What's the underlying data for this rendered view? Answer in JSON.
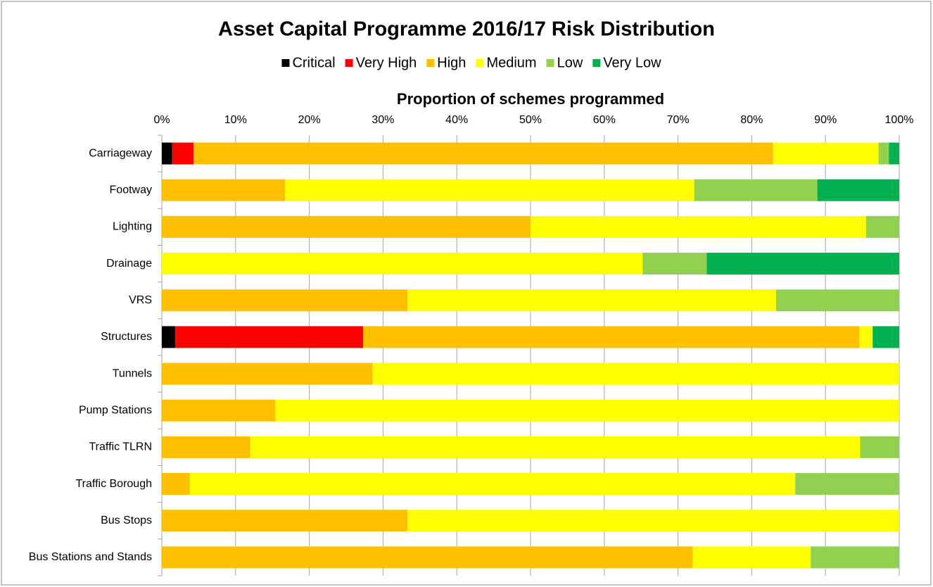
{
  "chart_data": {
    "type": "stacked-bar-horizontal",
    "title": "Asset Capital Programme 2016/17 Risk Distribution",
    "x_label": "Proportion of schemes programmed",
    "categories": [
      "Carriageway",
      "Footway",
      "Lighting",
      "Drainage",
      "VRS",
      "Structures",
      "Tunnels",
      "Pump Stations",
      "Traffic TLRN",
      "Traffic Borough",
      "Bus Stops",
      "Bus Stations and Stands"
    ],
    "series": [
      {
        "name": "Critical",
        "color": "#000000",
        "values": [
          1.4,
          0,
          0,
          0,
          0,
          1.8,
          0,
          0,
          0,
          0,
          0,
          0
        ]
      },
      {
        "name": "Very High",
        "color": "#ff0000",
        "values": [
          2.9,
          0,
          0,
          0,
          0,
          25.5,
          0,
          0,
          0,
          0,
          0,
          0
        ]
      },
      {
        "name": "High",
        "color": "#ffc000",
        "values": [
          78.6,
          16.7,
          50,
          0,
          33.3,
          67.3,
          28.6,
          15.4,
          12,
          3.8,
          33.3,
          72
        ]
      },
      {
        "name": "Medium",
        "color": "#ffff00",
        "values": [
          14.3,
          55.5,
          45.5,
          65.2,
          50,
          1.8,
          71.4,
          84.6,
          82.7,
          82.1,
          66.7,
          16
        ]
      },
      {
        "name": "Low",
        "color": "#92d050",
        "values": [
          1.4,
          16.7,
          4.5,
          8.7,
          16.7,
          0,
          0,
          0,
          5.3,
          14.1,
          0,
          12
        ]
      },
      {
        "name": "Very Low",
        "color": "#00b050",
        "values": [
          1.4,
          11.1,
          0,
          26.1,
          0,
          3.6,
          0,
          0,
          0,
          0,
          0,
          0
        ]
      }
    ],
    "xlim": [
      0,
      100
    ],
    "xticks": [
      {
        "value": 0,
        "label": "0%"
      },
      {
        "value": 10,
        "label": "10%"
      },
      {
        "value": 20,
        "label": "20%"
      },
      {
        "value": 30,
        "label": "30%"
      },
      {
        "value": 40,
        "label": "40%"
      },
      {
        "value": 50,
        "label": "50%"
      },
      {
        "value": 60,
        "label": "60%"
      },
      {
        "value": 70,
        "label": "70%"
      },
      {
        "value": 80,
        "label": "80%"
      },
      {
        "value": 90,
        "label": "90%"
      },
      {
        "value": 100,
        "label": "100%"
      }
    ],
    "grid": true,
    "legend": "top"
  }
}
